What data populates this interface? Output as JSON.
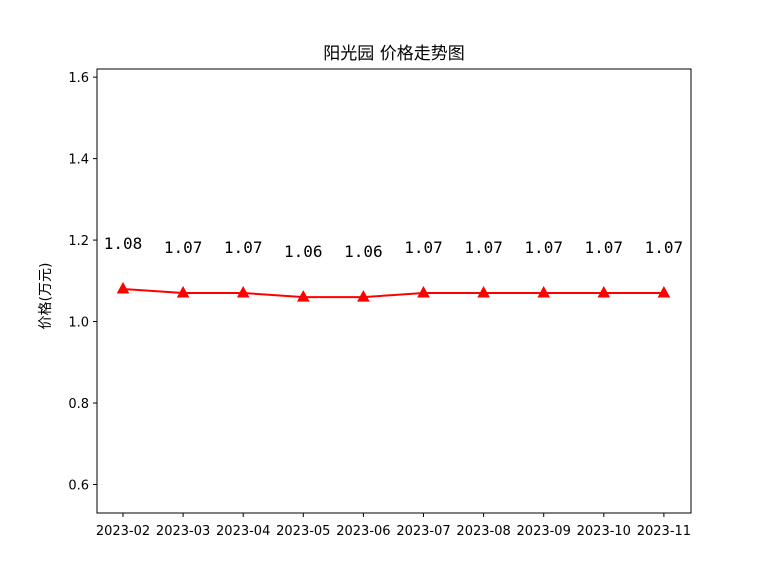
{
  "chart_data": {
    "type": "line",
    "title": "阳光园 价格走势图",
    "xlabel": "",
    "ylabel": "价格(万元)",
    "categories": [
      "2023-02",
      "2023-03",
      "2023-04",
      "2023-05",
      "2023-06",
      "2023-07",
      "2023-08",
      "2023-09",
      "2023-10",
      "2023-11"
    ],
    "series": [
      {
        "values": [
          1.08,
          1.07,
          1.07,
          1.06,
          1.06,
          1.07,
          1.07,
          1.07,
          1.07,
          1.07
        ],
        "color": "#ff0000",
        "marker": "triangle"
      }
    ],
    "data_labels": [
      "1.08",
      "1.07",
      "1.07",
      "1.06",
      "1.06",
      "1.07",
      "1.07",
      "1.07",
      "1.07",
      "1.07"
    ],
    "yticks": [
      "0.6",
      "0.8",
      "1.0",
      "1.2",
      "1.4",
      "1.6"
    ],
    "ytick_values": [
      0.6,
      0.8,
      1.0,
      1.2,
      1.4,
      1.6
    ],
    "ylim": [
      0.53,
      1.62
    ],
    "grid": false,
    "legend": false
  }
}
